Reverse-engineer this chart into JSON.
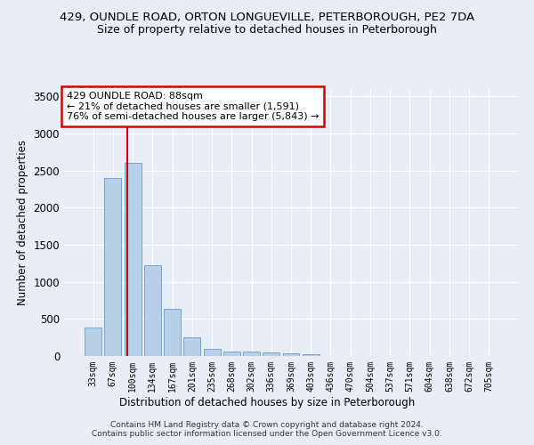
{
  "title_line1": "429, OUNDLE ROAD, ORTON LONGUEVILLE, PETERBOROUGH, PE2 7DA",
  "title_line2": "Size of property relative to detached houses in Peterborough",
  "xlabel": "Distribution of detached houses by size in Peterborough",
  "ylabel": "Number of detached properties",
  "categories": [
    "33sqm",
    "67sqm",
    "100sqm",
    "134sqm",
    "167sqm",
    "201sqm",
    "235sqm",
    "268sqm",
    "302sqm",
    "336sqm",
    "369sqm",
    "403sqm",
    "436sqm",
    "470sqm",
    "504sqm",
    "537sqm",
    "571sqm",
    "604sqm",
    "638sqm",
    "672sqm",
    "705sqm"
  ],
  "values": [
    390,
    2400,
    2600,
    1230,
    640,
    255,
    100,
    60,
    55,
    45,
    35,
    30,
    0,
    0,
    0,
    0,
    0,
    0,
    0,
    0,
    0
  ],
  "bar_color": "#b8cfe8",
  "bar_edge_color": "#6899c8",
  "vline_x": 1.73,
  "annotation_box_text": "429 OUNDLE ROAD: 88sqm\n← 21% of detached houses are smaller (1,591)\n76% of semi-detached houses are larger (5,843) →",
  "annotation_box_color": "#ffffff",
  "annotation_box_edge_color": "#cc0000",
  "vline_color": "#cc0000",
  "footer_text": "Contains HM Land Registry data © Crown copyright and database right 2024.\nContains public sector information licensed under the Open Government Licence v3.0.",
  "ylim": [
    0,
    3600
  ],
  "yticks": [
    0,
    500,
    1000,
    1500,
    2000,
    2500,
    3000,
    3500
  ],
  "bg_color": "#e8eef8",
  "grid_color": "#ffffff",
  "title_fontsize": 9.5,
  "subtitle_fontsize": 9
}
